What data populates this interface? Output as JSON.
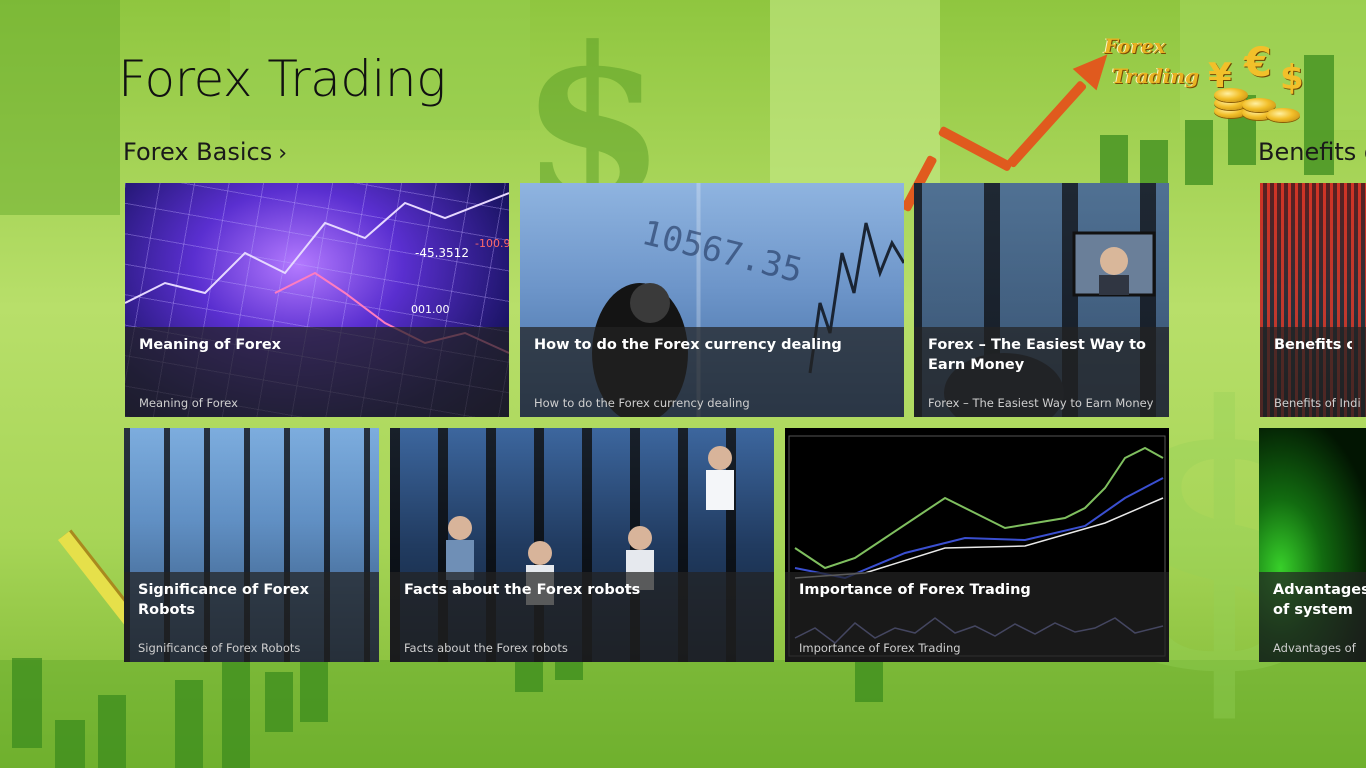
{
  "app": {
    "title": "Forex Trading"
  },
  "logo": {
    "line1": "Forex",
    "line2": "Trading",
    "symbols": [
      "¥",
      "€",
      "$"
    ]
  },
  "sections": [
    {
      "header": "Forex Basics",
      "chevron": "›",
      "items": [
        {
          "title": "Meaning of Forex",
          "subtitle": "Meaning of Forex"
        },
        {
          "title": "How to do the Forex currency dealing",
          "subtitle": "How to do the Forex currency dealing"
        },
        {
          "title": "Forex – The Easiest Way to Earn Money",
          "subtitle": "Forex – The Easiest Way to Earn Money"
        },
        {
          "title": "Significance of Forex Robots",
          "subtitle": "Significance of Forex Robots"
        },
        {
          "title": "Facts about the Forex robots",
          "subtitle": "Facts about the Forex robots"
        },
        {
          "title": "Importance of Forex Trading",
          "subtitle": "Importance of Forex Trading"
        }
      ]
    },
    {
      "header": "Benefits o",
      "items": [
        {
          "title": "Benefits of Inc",
          "subtitle": "Benefits of Indica"
        },
        {
          "title": "Advantages of system",
          "subtitle": "Advantages of Fo"
        }
      ]
    }
  ],
  "tile_images": {
    "meaning_ticker": [
      "-45.3512",
      "-100.9",
      "001.00"
    ],
    "howto_ticker": [
      "10567.35"
    ]
  },
  "colors": {
    "accent_green": "#8cc43a",
    "arrow": "#e05a1e",
    "tile_overlay": "#232323",
    "title_text": "#111111"
  }
}
